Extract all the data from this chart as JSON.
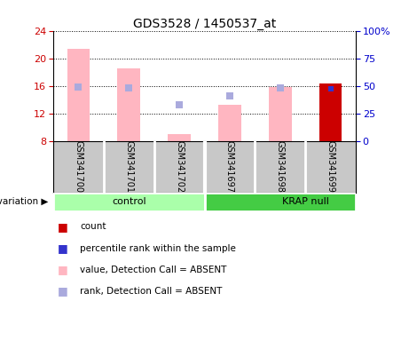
{
  "title": "GDS3528 / 1450537_at",
  "samples": [
    "GSM341700",
    "GSM341701",
    "GSM341702",
    "GSM341697",
    "GSM341698",
    "GSM341699"
  ],
  "groups": [
    "control",
    "control",
    "control",
    "KRAP null",
    "KRAP null",
    "KRAP null"
  ],
  "group_labels": [
    "control",
    "KRAP null"
  ],
  "pink_bar_values": [
    21.3,
    18.5,
    9.0,
    13.2,
    15.8,
    null
  ],
  "red_bar_values": [
    null,
    null,
    null,
    null,
    null,
    16.3
  ],
  "blue_sq_absent": [
    null,
    null,
    13.3,
    14.5,
    null,
    null
  ],
  "blue_sq_present": [
    null,
    null,
    null,
    null,
    null,
    15.6
  ],
  "rank_absent": [
    15.8,
    15.7,
    null,
    null,
    15.7,
    null
  ],
  "ylim_left": [
    8,
    24
  ],
  "ylim_right": [
    0,
    100
  ],
  "yticks_left": [
    8,
    12,
    16,
    20,
    24
  ],
  "yticks_right": [
    0,
    25,
    50,
    75,
    100
  ],
  "ytick_labels_right": [
    "0",
    "25",
    "50",
    "75",
    "100%"
  ],
  "pink_color": "#ffb6c1",
  "red_color": "#cc0000",
  "blue_absent_color": "#aaaadd",
  "blue_present_color": "#3333cc",
  "left_axis_color": "#cc0000",
  "right_axis_color": "#0000cc",
  "bg_label": "#c8c8c8",
  "ctrl_color": "#aaffaa",
  "krap_color": "#44cc44"
}
